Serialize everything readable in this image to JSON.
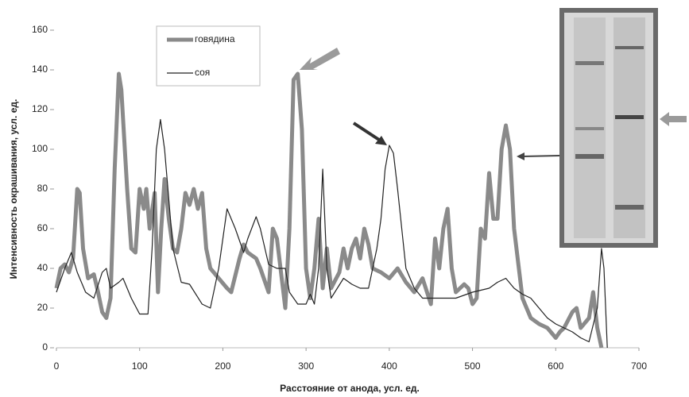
{
  "chart_data": {
    "type": "line",
    "xlabel": "Расстояние от анода, усл. ед.",
    "ylabel": "Интенсивность окрашивания, усл. ед.",
    "xlim": [
      0,
      700
    ],
    "xticks": [
      0,
      100,
      200,
      300,
      400,
      500,
      600,
      700
    ],
    "ylim": [
      0,
      160
    ],
    "yticks": [
      0,
      20,
      40,
      60,
      80,
      100,
      120,
      140,
      160
    ],
    "series": [
      {
        "name": "говядина",
        "color": "#8a8a8a",
        "x": [
          0,
          5,
          10,
          15,
          20,
          25,
          28,
          32,
          38,
          45,
          50,
          55,
          60,
          65,
          70,
          75,
          78,
          85,
          90,
          95,
          100,
          105,
          108,
          112,
          118,
          122,
          126,
          130,
          135,
          140,
          145,
          150,
          155,
          160,
          165,
          170,
          175,
          180,
          185,
          195,
          205,
          210,
          220,
          225,
          230,
          240,
          245,
          255,
          260,
          265,
          275,
          280,
          285,
          290,
          295,
          300,
          305,
          310,
          315,
          320,
          325,
          330,
          340,
          345,
          350,
          355,
          360,
          365,
          370,
          375,
          380,
          390,
          400,
          410,
          420,
          430,
          440,
          450,
          455,
          460,
          465,
          470,
          475,
          480,
          490,
          495,
          500,
          505,
          510,
          515,
          520,
          525,
          530,
          535,
          540,
          545,
          550,
          560,
          570,
          580,
          590,
          600,
          605,
          610,
          620,
          625,
          630,
          640,
          645,
          650,
          655
        ],
        "values": [
          30,
          40,
          42,
          38,
          45,
          80,
          78,
          50,
          35,
          37,
          28,
          18,
          15,
          25,
          90,
          138,
          130,
          80,
          50,
          48,
          80,
          70,
          80,
          60,
          78,
          28,
          60,
          85,
          65,
          50,
          48,
          60,
          78,
          72,
          80,
          70,
          78,
          50,
          40,
          35,
          30,
          28,
          45,
          52,
          48,
          45,
          40,
          28,
          60,
          55,
          20,
          60,
          135,
          138,
          110,
          40,
          25,
          40,
          65,
          30,
          50,
          30,
          38,
          50,
          40,
          50,
          55,
          45,
          60,
          52,
          40,
          38,
          35,
          40,
          33,
          28,
          35,
          22,
          55,
          40,
          60,
          70,
          40,
          28,
          32,
          30,
          22,
          25,
          60,
          55,
          88,
          65,
          65,
          100,
          112,
          100,
          60,
          25,
          15,
          12,
          10,
          5,
          8,
          10,
          18,
          20,
          10,
          15,
          28,
          10,
          0
        ]
      },
      {
        "name": "соя",
        "color": "#222222",
        "x": [
          0,
          10,
          18,
          25,
          35,
          45,
          55,
          60,
          65,
          75,
          80,
          90,
          100,
          110,
          115,
          120,
          125,
          130,
          140,
          150,
          160,
          175,
          185,
          195,
          205,
          215,
          225,
          230,
          240,
          245,
          255,
          265,
          275,
          280,
          290,
          300,
          305,
          310,
          315,
          320,
          325,
          330,
          345,
          355,
          365,
          375,
          385,
          390,
          395,
          400,
          405,
          410,
          420,
          430,
          440,
          460,
          480,
          500,
          520,
          530,
          540,
          550,
          560,
          570,
          580,
          590,
          600,
          610,
          620,
          630,
          640,
          650,
          655,
          658,
          662
        ],
        "values": [
          28,
          40,
          48,
          38,
          28,
          25,
          38,
          40,
          30,
          33,
          35,
          25,
          17,
          17,
          50,
          100,
          115,
          100,
          50,
          33,
          32,
          22,
          20,
          40,
          70,
          60,
          48,
          55,
          66,
          60,
          42,
          40,
          40,
          28,
          22,
          22,
          27,
          22,
          40,
          90,
          40,
          25,
          35,
          32,
          30,
          30,
          50,
          65,
          90,
          102,
          98,
          80,
          40,
          30,
          25,
          25,
          25,
          28,
          30,
          33,
          35,
          30,
          27,
          25,
          20,
          15,
          12,
          10,
          8,
          5,
          3,
          20,
          50,
          40,
          0
        ]
      }
    ]
  }
}
